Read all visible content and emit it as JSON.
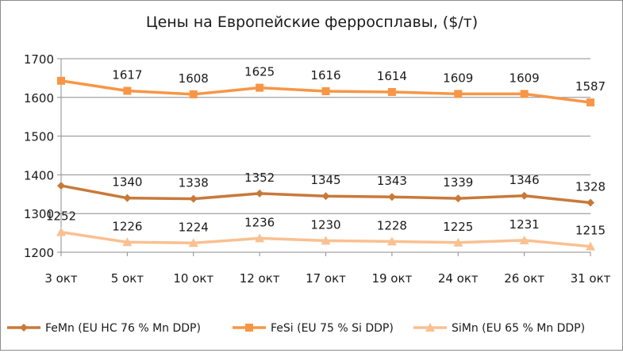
{
  "chart_data": {
    "type": "line",
    "title": "Цены на Европейские ферросплавы, ($/т)",
    "xlabel": "",
    "ylabel": "",
    "categories": [
      "3 окт",
      "5 окт",
      "10 окт",
      "12 окт",
      "17 окт",
      "19 окт",
      "24 окт",
      "26 окт",
      "31 окт"
    ],
    "ylim": [
      1200,
      1700
    ],
    "yticks": [
      1200,
      1300,
      1400,
      1500,
      1600,
      1700
    ],
    "grid": "horizontal",
    "legend": "bottom",
    "series": [
      {
        "name": "FeMn (EU HC 76 % Mn DDP)",
        "color": "#c8793a",
        "marker": "diamond",
        "values": [
          1372,
          1340,
          1338,
          1352,
          1345,
          1343,
          1339,
          1346,
          1328
        ],
        "labels": [
          "",
          "1340",
          "1338",
          "1352",
          "1345",
          "1343",
          "1339",
          "1346",
          "1328"
        ]
      },
      {
        "name": "FeSi (EU 75 % Si DDP)",
        "color": "#f79646",
        "marker": "square",
        "values": [
          1643,
          1617,
          1608,
          1625,
          1616,
          1614,
          1609,
          1609,
          1587
        ],
        "labels": [
          "",
          "1617",
          "1608",
          "1625",
          "1616",
          "1614",
          "1609",
          "1609",
          "1587"
        ]
      },
      {
        "name": "SiMn (EU 65 % Mn DDP)",
        "color": "#fac090",
        "marker": "triangle",
        "values": [
          1252,
          1226,
          1224,
          1236,
          1230,
          1228,
          1225,
          1231,
          1215
        ],
        "labels": [
          "1252",
          "1226",
          "1224",
          "1236",
          "1230",
          "1228",
          "1225",
          "1231",
          "1215"
        ]
      }
    ]
  }
}
